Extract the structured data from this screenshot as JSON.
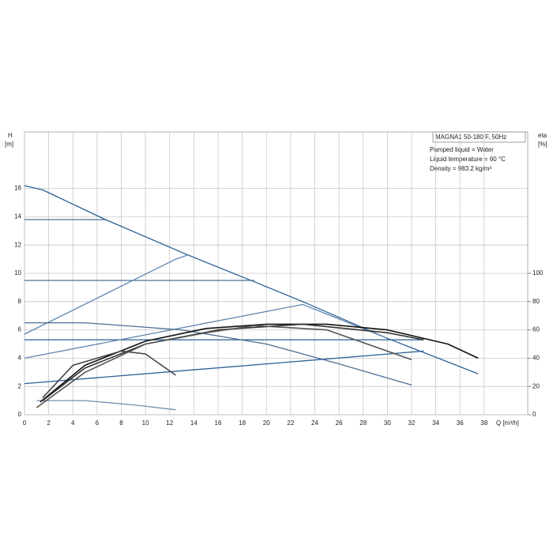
{
  "chart_data": {
    "type": "line",
    "title": "MAGNA1 50-180 F, 50Hz",
    "annotations": [
      "Pumped liquid = Water",
      "Liquid temperature = 60 °C",
      "Density = 983.2 kg/m³"
    ],
    "x_label": "Q [m³/h]",
    "y_label": "H",
    "y_unit": "[m]",
    "y2_label": "eta",
    "y2_unit": "[%]",
    "xlim": [
      0,
      41.6
    ],
    "xticks": [
      0,
      2,
      4,
      6,
      8,
      10,
      12,
      14,
      16,
      18,
      20,
      22,
      24,
      26,
      28,
      30,
      32,
      34,
      36,
      38
    ],
    "ylim": [
      0,
      20
    ],
    "yticks": [
      0,
      2,
      4,
      6,
      8,
      10,
      12,
      14,
      16
    ],
    "y2lim": [
      0,
      200
    ],
    "y2ticks": [
      0,
      20,
      40,
      60,
      80,
      100
    ],
    "grid": true,
    "series": [
      {
        "color": "#2b5f94",
        "x": [
          0,
          1.5,
          6.7,
          13.5,
          19,
          23,
          30,
          37.5
        ],
        "values": [
          16.2,
          15.9,
          13.8,
          11.3,
          9.4,
          8,
          5.4,
          2.9
        ]
      },
      {
        "color": "#4d6f94",
        "x": [
          0,
          6.7
        ],
        "values": [
          13.8,
          13.8
        ]
      },
      {
        "color": "#4d6f94",
        "x": [
          0,
          19
        ],
        "values": [
          9.5,
          9.5
        ]
      },
      {
        "color": "#2b5f94",
        "x": [
          0,
          33
        ],
        "values": [
          5.3,
          5.3
        ]
      },
      {
        "color": "#5f86ad",
        "x": [
          0,
          12.5,
          13.5
        ],
        "values": [
          5.7,
          11,
          11.3
        ]
      },
      {
        "color": "#5f86ad",
        "x": [
          0,
          23,
          30
        ],
        "values": [
          4,
          7.8,
          5.4
        ]
      },
      {
        "color": "#2b5f94",
        "x": [
          0,
          33
        ],
        "values": [
          2.2,
          4.5
        ]
      },
      {
        "color": "#4d6f94",
        "x": [
          0,
          5,
          13,
          20,
          26,
          32
        ],
        "values": [
          6.5,
          6.5,
          6,
          5,
          3.6,
          2.1
        ]
      },
      {
        "color": "#6f8fb0",
        "x": [
          1,
          5,
          9,
          12.5
        ],
        "values": [
          1,
          1,
          0.7,
          0.35
        ]
      },
      {
        "color": "#111111",
        "axis": "y2",
        "x": [
          1.3,
          5,
          10,
          15,
          20,
          25,
          30,
          35,
          37.5
        ],
        "values": [
          9,
          35,
          52,
          61,
          64,
          64,
          60,
          50,
          40
        ]
      },
      {
        "color": "#333333",
        "axis": "y2",
        "x": [
          1.5,
          5,
          10,
          16,
          23,
          30,
          33
        ],
        "values": [
          10,
          33,
          50,
          60,
          64,
          58,
          53
        ]
      },
      {
        "color": "#444444",
        "axis": "y2",
        "x": [
          1.5,
          4,
          8,
          10,
          12.5
        ],
        "values": [
          12,
          35,
          45,
          43,
          28
        ]
      },
      {
        "color": "#555555",
        "axis": "y2",
        "x": [
          1,
          5,
          10,
          15,
          19,
          25,
          32
        ],
        "values": [
          5,
          30,
          50,
          58,
          63,
          60,
          39
        ]
      }
    ]
  }
}
